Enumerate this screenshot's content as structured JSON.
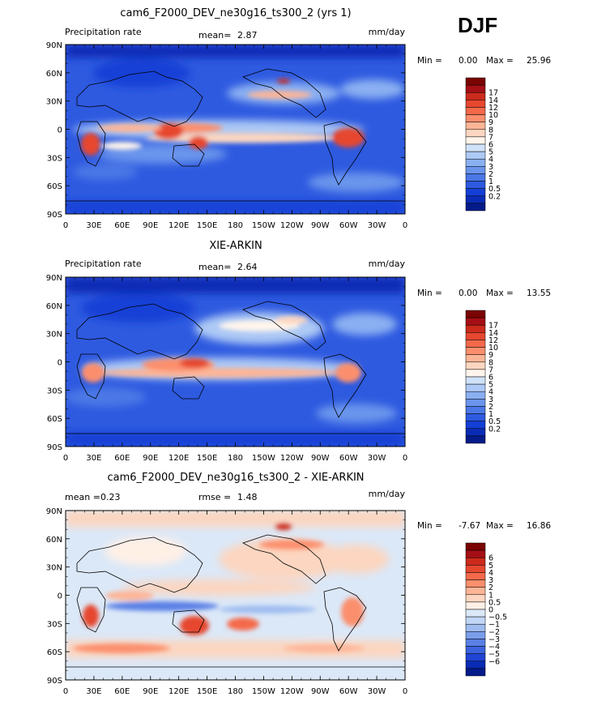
{
  "season": "DJF",
  "chart_data": [
    {
      "type": "heatmap",
      "title": "cam6_F2000_DEV_ne30g16_ts300_2 (yrs 1)",
      "left_label": "Precipitation rate",
      "stat1_label": "mean=",
      "stat1_value": "2.87",
      "stat2_label": "",
      "stat2_value": "",
      "units": "mm/day",
      "min_label": "Min =",
      "min_value": "0.00",
      "max_label": "Max =",
      "max_value": "25.96",
      "palette": "precip",
      "levels": [
        "17",
        "14",
        "12",
        "10",
        "9",
        "8",
        "7",
        "6",
        "5",
        "4",
        "3",
        "2",
        "1",
        "0.5",
        "0.2"
      ],
      "colors": [
        "#7a0403",
        "#a50f15",
        "#cb2a1c",
        "#e6472f",
        "#f4694a",
        "#fb8f6d",
        "#fdb597",
        "#fcd6c0",
        "#fff5ec",
        "#cfe2f8",
        "#adc9f5",
        "#8bb0f2",
        "#6b95ec",
        "#4b78e6",
        "#2e5ae0",
        "#143fd6",
        "#0a2bb5",
        "#041b8a"
      ],
      "x_ticks": [
        "0",
        "30E",
        "60E",
        "90E",
        "120E",
        "150E",
        "180",
        "150W",
        "120W",
        "90W",
        "60W",
        "30W",
        "0"
      ],
      "y_ticks": [
        "90N",
        "60N",
        "30N",
        "0",
        "30S",
        "60S",
        "90S"
      ]
    },
    {
      "type": "heatmap",
      "title": "XIE-ARKIN",
      "left_label": "Precipitation rate",
      "stat1_label": "mean=",
      "stat1_value": "2.64",
      "stat2_label": "",
      "stat2_value": "",
      "units": "mm/day",
      "min_label": "Min =",
      "min_value": "0.00",
      "max_label": "Max =",
      "max_value": "13.55",
      "palette": "precip",
      "levels": [
        "17",
        "14",
        "12",
        "10",
        "9",
        "8",
        "7",
        "6",
        "5",
        "4",
        "3",
        "2",
        "1",
        "0.5",
        "0.2"
      ],
      "colors": [
        "#7a0403",
        "#a50f15",
        "#cb2a1c",
        "#e6472f",
        "#f4694a",
        "#fb8f6d",
        "#fdb597",
        "#fcd6c0",
        "#fff5ec",
        "#cfe2f8",
        "#adc9f5",
        "#8bb0f2",
        "#6b95ec",
        "#4b78e6",
        "#2e5ae0",
        "#143fd6",
        "#0a2bb5",
        "#041b8a"
      ],
      "x_ticks": [
        "0",
        "30E",
        "60E",
        "90E",
        "120E",
        "150E",
        "180",
        "150W",
        "120W",
        "90W",
        "60W",
        "30W",
        "0"
      ],
      "y_ticks": [
        "90N",
        "60N",
        "30N",
        "0",
        "30S",
        "60S",
        "90S"
      ]
    },
    {
      "type": "heatmap",
      "title": "cam6_F2000_DEV_ne30g16_ts300_2 - XIE-ARKIN",
      "left_label": "",
      "stat1_label": "mean =",
      "stat1_value": "0.23",
      "stat2_label": "rmse =",
      "stat2_value": "1.48",
      "units": "mm/day",
      "min_label": "Min =",
      "min_value": "-7.67",
      "max_label": "Max =",
      "max_value": "16.86",
      "palette": "diff",
      "levels": [
        "6",
        "5",
        "4",
        "3",
        "2",
        "1",
        "0.5",
        "0",
        "−0.5",
        "−1",
        "−2",
        "−3",
        "−4",
        "−5",
        "−6"
      ],
      "colors": [
        "#7a0403",
        "#a50f15",
        "#cb2a1c",
        "#e6472f",
        "#f4694a",
        "#fb8f6d",
        "#fdb597",
        "#fcd6c0",
        "#fff0e6",
        "#dbe8f8",
        "#c2d6f5",
        "#9fbcef",
        "#7b9eea",
        "#5a80e5",
        "#3c62de",
        "#2044d4",
        "#0a2bb5",
        "#041b8a"
      ],
      "x_ticks": [
        "0",
        "30E",
        "60E",
        "90E",
        "120E",
        "150E",
        "180",
        "150W",
        "120W",
        "90W",
        "60W",
        "30W",
        "0"
      ],
      "y_ticks": [
        "90N",
        "60N",
        "30N",
        "0",
        "30S",
        "60S",
        "90S"
      ]
    }
  ]
}
